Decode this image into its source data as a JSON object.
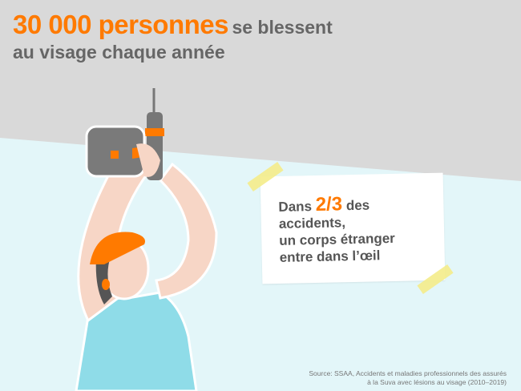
{
  "headline": {
    "number": "30 000 personnes",
    "rest_line1": "se blessent",
    "line2": "au visage chaque année"
  },
  "note": {
    "prefix": "Dans",
    "fraction": "2/3",
    "suffix": "des",
    "line2": "accidents,",
    "line3": "un corps étranger",
    "line4": "entre dans l’œil"
  },
  "source": {
    "line1": "Source: SSAA, Accidents et maladies professionnels des assurés",
    "line2": "à la Suva avec lésions au visage (2010–2019)"
  },
  "colors": {
    "accent": "#ff7a00",
    "ceiling": "#d9d9d9",
    "wall": "#e3f6f9",
    "text": "#666666",
    "tape": "#f4ec8a"
  },
  "illustration": "man-drilling-ceiling"
}
